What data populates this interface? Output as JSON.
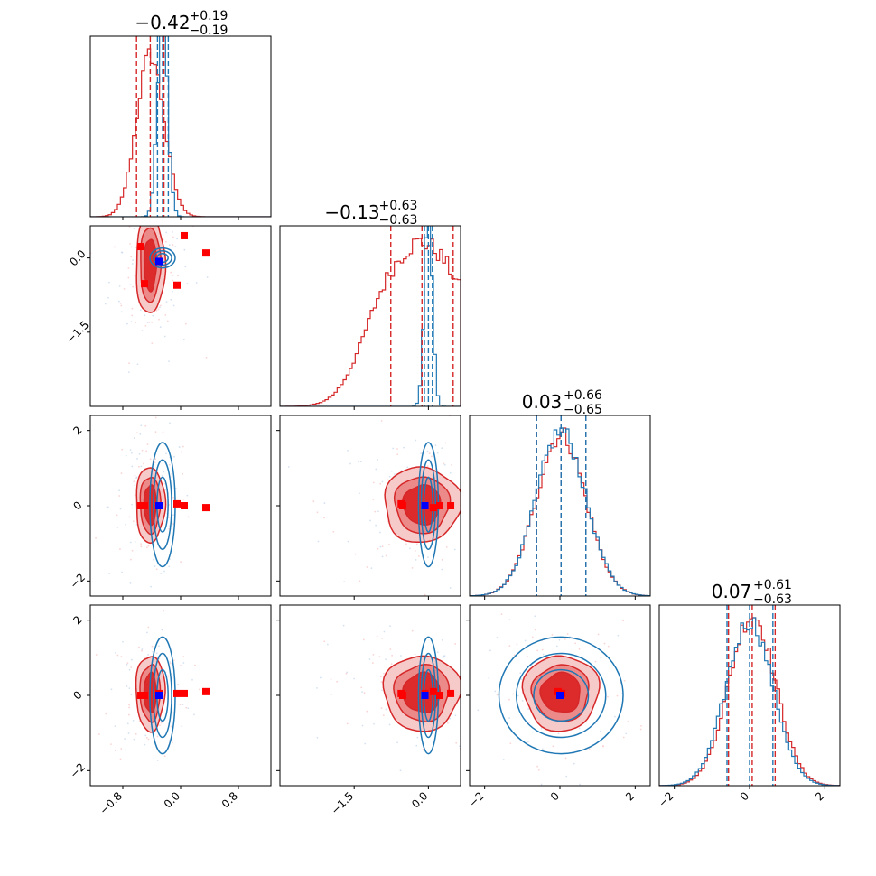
{
  "chart_data": {
    "type": "corner",
    "grid": false,
    "dims": 4,
    "colors": {
      "red": "#d62728",
      "blue": "#1f77b4",
      "truth_blue": "#0000ff",
      "truth_red": "#ff0000"
    },
    "titles": [
      {
        "value": "−0.42",
        "upper": "+0.19",
        "lower": "−0.19"
      },
      {
        "value": "−0.13",
        "upper": "+0.63",
        "lower": "−0.63"
      },
      {
        "value": "0.03",
        "upper": "+0.66",
        "lower": "−0.65"
      },
      {
        "value": "0.07",
        "upper": "+0.61",
        "lower": "−0.63"
      }
    ],
    "ranges": [
      [
        -1.25,
        1.25
      ],
      [
        -3.0,
        0.65
      ],
      [
        -2.4,
        2.4
      ],
      [
        -2.4,
        2.4
      ]
    ],
    "ticks": [
      {
        "values": [
          -0.8,
          0.0,
          0.8
        ],
        "labels": [
          "−0.8",
          "0.0",
          "0.8"
        ]
      },
      {
        "values": [
          -1.5,
          0.0
        ],
        "labels": [
          "−1.5",
          "0.0"
        ]
      },
      {
        "values": [
          -2,
          0,
          2
        ],
        "labels": [
          "−2",
          "0",
          "2"
        ]
      },
      {
        "values": [
          -2,
          0,
          2
        ],
        "labels": [
          "−2",
          "0",
          "2"
        ]
      }
    ],
    "marginals": [
      {
        "red": {
          "mean": -0.42,
          "sd": 0.19,
          "quantiles": [
            -0.61,
            -0.42,
            -0.23
          ]
        },
        "blue": {
          "mean": -0.25,
          "sd": 0.07,
          "quantiles": [
            -0.32,
            -0.25,
            -0.17
          ]
        }
      },
      {
        "red": {
          "mean": -0.13,
          "sd": 0.63,
          "bimodal": true,
          "quantiles": [
            -0.76,
            -0.13,
            0.5
          ]
        },
        "blue": {
          "mean": 0.0,
          "sd": 0.08,
          "quantiles": [
            -0.08,
            0.0,
            0.08
          ]
        }
      },
      {
        "red": {
          "mean": 0.03,
          "sd": 0.66,
          "quantiles": [
            -0.62,
            0.03,
            0.69
          ]
        },
        "blue": {
          "mean": 0.03,
          "sd": 0.66,
          "quantiles": [
            -0.62,
            0.03,
            0.69
          ]
        }
      },
      {
        "red": {
          "mean": 0.07,
          "sd": 0.62,
          "quantiles": [
            -0.56,
            0.07,
            0.68
          ]
        },
        "blue": {
          "mean": 0.0,
          "sd": 0.62,
          "quantiles": [
            -0.6,
            0.0,
            0.62
          ]
        }
      }
    ],
    "red_markers": [
      [
        -0.55,
        0.23,
        0.0,
        0.0
      ],
      [
        -0.5,
        -0.52,
        0.0,
        0.0
      ],
      [
        0.35,
        0.1,
        -0.05,
        0.1
      ],
      [
        -0.05,
        -0.55,
        0.05,
        0.05
      ],
      [
        0.05,
        0.45,
        0.0,
        0.05
      ],
      [
        -0.3,
        -0.07,
        0.0,
        0.05
      ]
    ],
    "truth": [
      -0.3,
      -0.07,
      0.0,
      0.0
    ],
    "red_ellipses_rx": [
      [
        0.4,
        0.28,
        0.17
      ],
      [
        1.55,
        1.1,
        0.75
      ],
      [
        2.0,
        1.5,
        1.05
      ],
      [
        2.0,
        1.5,
        1.05
      ]
    ],
    "red_ellipses_ry": [
      [
        1.6,
        1.15,
        0.78
      ],
      [
        2.0,
        1.5,
        1.05
      ],
      [
        2.0,
        1.5,
        1.05
      ],
      [
        2.0,
        1.5,
        1.05
      ]
    ]
  }
}
